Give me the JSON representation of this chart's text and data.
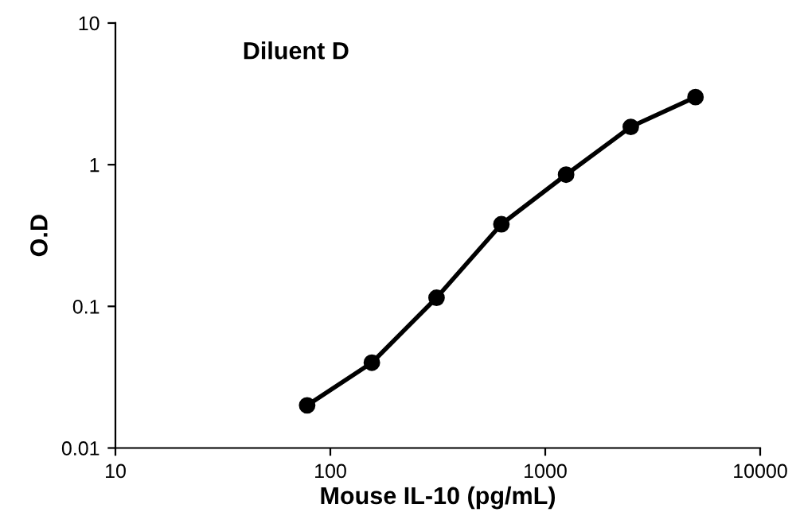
{
  "chart_data": {
    "type": "line",
    "title": "Diluent D",
    "xlabel": "Mouse IL-10 (pg/mL)",
    "ylabel": "O.D",
    "x": [
      78,
      156,
      312,
      625,
      1250,
      2500,
      5000
    ],
    "series": [
      {
        "color": "#000000",
        "values": [
          0.02,
          0.04,
          0.115,
          0.38,
          0.85,
          1.85,
          3.0
        ]
      }
    ],
    "log": "xy",
    "xlim": [
      10,
      10000
    ],
    "ylim": [
      0.01,
      10
    ],
    "xticks": [
      10,
      100,
      1000,
      10000
    ],
    "yticks": [
      0.01,
      0.1,
      1,
      10
    ],
    "marker": "circle",
    "line_style": "solid",
    "grid": false,
    "legend": false
  }
}
